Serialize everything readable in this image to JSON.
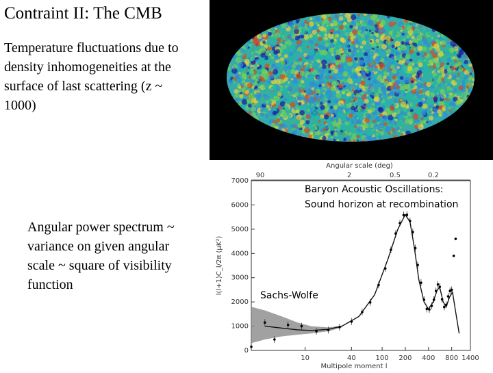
{
  "slide": {
    "title": "Contraint II: The CMB",
    "paragraph1": "Temperature fluctuations due to density inhomogeneities at the surface of last scattering (z ~ 1000)",
    "paragraph2": "Angular power spectrum ~ variance on given angular scale ~ square of visibility function"
  },
  "cmb_map": {
    "colors": [
      "#1a1aa0",
      "#2f8cd8",
      "#22b6a6",
      "#6fce5a",
      "#e8d23a",
      "#e0461e"
    ]
  },
  "chart_data": {
    "type": "line",
    "title": "",
    "xlabel": "Multipole moment l",
    "ylabel": "l(l+1)C_l/2π (μK²)",
    "top_axis_label": "Angular scale (deg)",
    "top_ticks": [
      "90",
      "2",
      "0.5",
      "0.2"
    ],
    "xticks": [
      "10",
      "40",
      "100",
      "200",
      "400",
      "800",
      "1400"
    ],
    "yticks": [
      "0",
      "1000",
      "2000",
      "3000",
      "4000",
      "5000",
      "6000",
      "7000"
    ],
    "ylim": [
      0,
      7000
    ],
    "xlim": [
      2,
      1400
    ],
    "x_scale": "log",
    "annotations": {
      "baryon_line1": "Baryon Acoustic Oscillations:",
      "baryon_line2": "Sound horizon at recombination",
      "sachs_wolfe": "Sachs-Wolfe"
    },
    "model_curve": {
      "x": [
        3,
        5,
        8,
        12,
        20,
        30,
        50,
        80,
        120,
        160,
        200,
        230,
        260,
        300,
        350,
        400,
        460,
        520,
        560,
        620,
        680,
        750,
        820,
        900,
        1000
      ],
      "y": [
        1000,
        920,
        850,
        820,
        870,
        1000,
        1400,
        2300,
        3800,
        5000,
        5600,
        5300,
        4300,
        2900,
        2000,
        1700,
        2000,
        2500,
        2600,
        2000,
        1800,
        2200,
        2400,
        1600,
        700
      ]
    },
    "cosmic_variance_band": {
      "x": [
        2,
        3,
        5,
        8,
        12,
        20,
        30
      ],
      "upper": [
        1800,
        1650,
        1400,
        1150,
        1000,
        950,
        1020
      ],
      "lower": [
        300,
        450,
        580,
        650,
        700,
        790,
        950
      ]
    },
    "measurements": {
      "x": [
        2,
        3,
        4,
        6,
        9,
        14,
        20,
        28,
        40,
        55,
        70,
        90,
        110,
        130,
        150,
        170,
        190,
        210,
        230,
        250,
        270,
        290,
        320,
        350,
        380,
        410,
        440,
        470,
        500,
        530,
        560,
        600,
        640,
        680,
        720,
        760,
        800
      ],
      "y": [
        150,
        1150,
        450,
        1050,
        1000,
        790,
        840,
        960,
        1190,
        1580,
        1980,
        2700,
        3380,
        4150,
        4820,
        5250,
        5580,
        5590,
        5340,
        4880,
        4220,
        3520,
        2790,
        2090,
        1710,
        1690,
        1840,
        2090,
        2450,
        2720,
        2620,
        2110,
        1790,
        1880,
        2230,
        2450,
        2500
      ],
      "outliers": {
        "x": [
          850,
          900
        ],
        "y": [
          3900,
          4600
        ]
      }
    }
  }
}
